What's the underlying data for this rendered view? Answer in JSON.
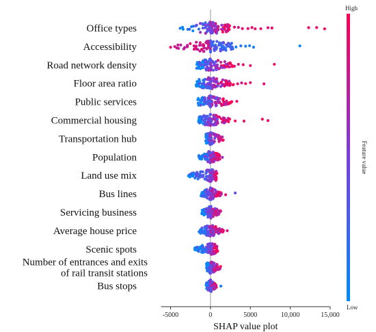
{
  "chart_data": {
    "type": "scatter",
    "subtype": "shap-beeswarm",
    "xlabel": "SHAP value plot",
    "xlim": [
      -6500,
      15000
    ],
    "xticks": [
      -5000,
      0,
      5000,
      10000,
      15000
    ],
    "xtick_labels": [
      "-5000",
      "0",
      "5000",
      "10,000",
      "15,000"
    ],
    "zero_line": 0,
    "colorbar": {
      "label": "Feature value",
      "high": "High",
      "low": "Low",
      "low_color": "#008bfb",
      "high_color": "#ff0052"
    },
    "features": [
      {
        "name": "Office types",
        "spread": [
          -4000,
          2500
        ],
        "outliers": [
          [
            3000,
            0.9
          ],
          [
            3500,
            0.85
          ],
          [
            4000,
            0.9
          ],
          [
            4700,
            0.9
          ],
          [
            5200,
            0.95
          ],
          [
            5600,
            0.9
          ],
          [
            6300,
            0.95
          ],
          [
            7200,
            0.9
          ],
          [
            7700,
            0.95
          ],
          [
            12300,
            0.95
          ],
          [
            13300,
            0.95
          ],
          [
            14300,
            0.95
          ]
        ]
      },
      {
        "name": "Accessibility",
        "spread": [
          -4500,
          3000
        ],
        "outliers": [
          [
            -5000,
            0.9
          ],
          [
            3200,
            0.1
          ],
          [
            3800,
            0.15
          ],
          [
            4400,
            0.1
          ],
          [
            4900,
            0.1
          ],
          [
            5400,
            0.1
          ],
          [
            11200,
            0.05
          ]
        ]
      },
      {
        "name": "Road network density",
        "spread": [
          -1800,
          3000
        ],
        "outliers": [
          [
            3500,
            0.85
          ],
          [
            4100,
            0.9
          ],
          [
            5000,
            0.9
          ],
          [
            8000,
            0.95
          ]
        ]
      },
      {
        "name": "Floor area ratio",
        "spread": [
          -1800,
          3000
        ],
        "outliers": [
          [
            3400,
            0.9
          ],
          [
            3900,
            0.85
          ],
          [
            4400,
            0.95
          ],
          [
            5000,
            0.9
          ],
          [
            6700,
            0.9
          ]
        ]
      },
      {
        "name": "Public services",
        "spread": [
          -1600,
          2800
        ],
        "outliers": [
          [
            3300,
            0.9
          ]
        ]
      },
      {
        "name": "Commercial housing",
        "spread": [
          -1500,
          2500
        ],
        "outliers": [
          [
            3100,
            0.95
          ],
          [
            4200,
            0.9
          ],
          [
            6500,
            0.95
          ],
          [
            7200,
            0.9
          ]
        ]
      },
      {
        "name": "Transportation hub",
        "spread": [
          -600,
          1700
        ],
        "outliers": []
      },
      {
        "name": "Population",
        "spread": [
          -1500,
          1200
        ],
        "outliers": [
          [
            1500,
            0.6
          ]
        ]
      },
      {
        "name": "Land use mix",
        "spread": [
          -2900,
          900
        ],
        "outliers": []
      },
      {
        "name": "Bus lines",
        "spread": [
          -1200,
          1400
        ],
        "outliers": [
          [
            1900,
            0.9
          ],
          [
            3100,
            0.4
          ]
        ]
      },
      {
        "name": "Servicing business",
        "spread": [
          -1100,
          1300
        ],
        "outliers": []
      },
      {
        "name": "Average house price",
        "spread": [
          -1500,
          1700
        ],
        "outliers": [
          [
            2100,
            0.85
          ]
        ]
      },
      {
        "name": "Scenic spots",
        "spread": [
          -2000,
          900
        ],
        "outliers": []
      },
      {
        "name": "Number of entrances and exits\nof rail transit stations",
        "spread": [
          -500,
          1300
        ],
        "outliers": []
      },
      {
        "name": "Bus stops",
        "spread": [
          -600,
          800
        ],
        "outliers": [
          [
            1300,
            0.1
          ]
        ]
      }
    ]
  }
}
